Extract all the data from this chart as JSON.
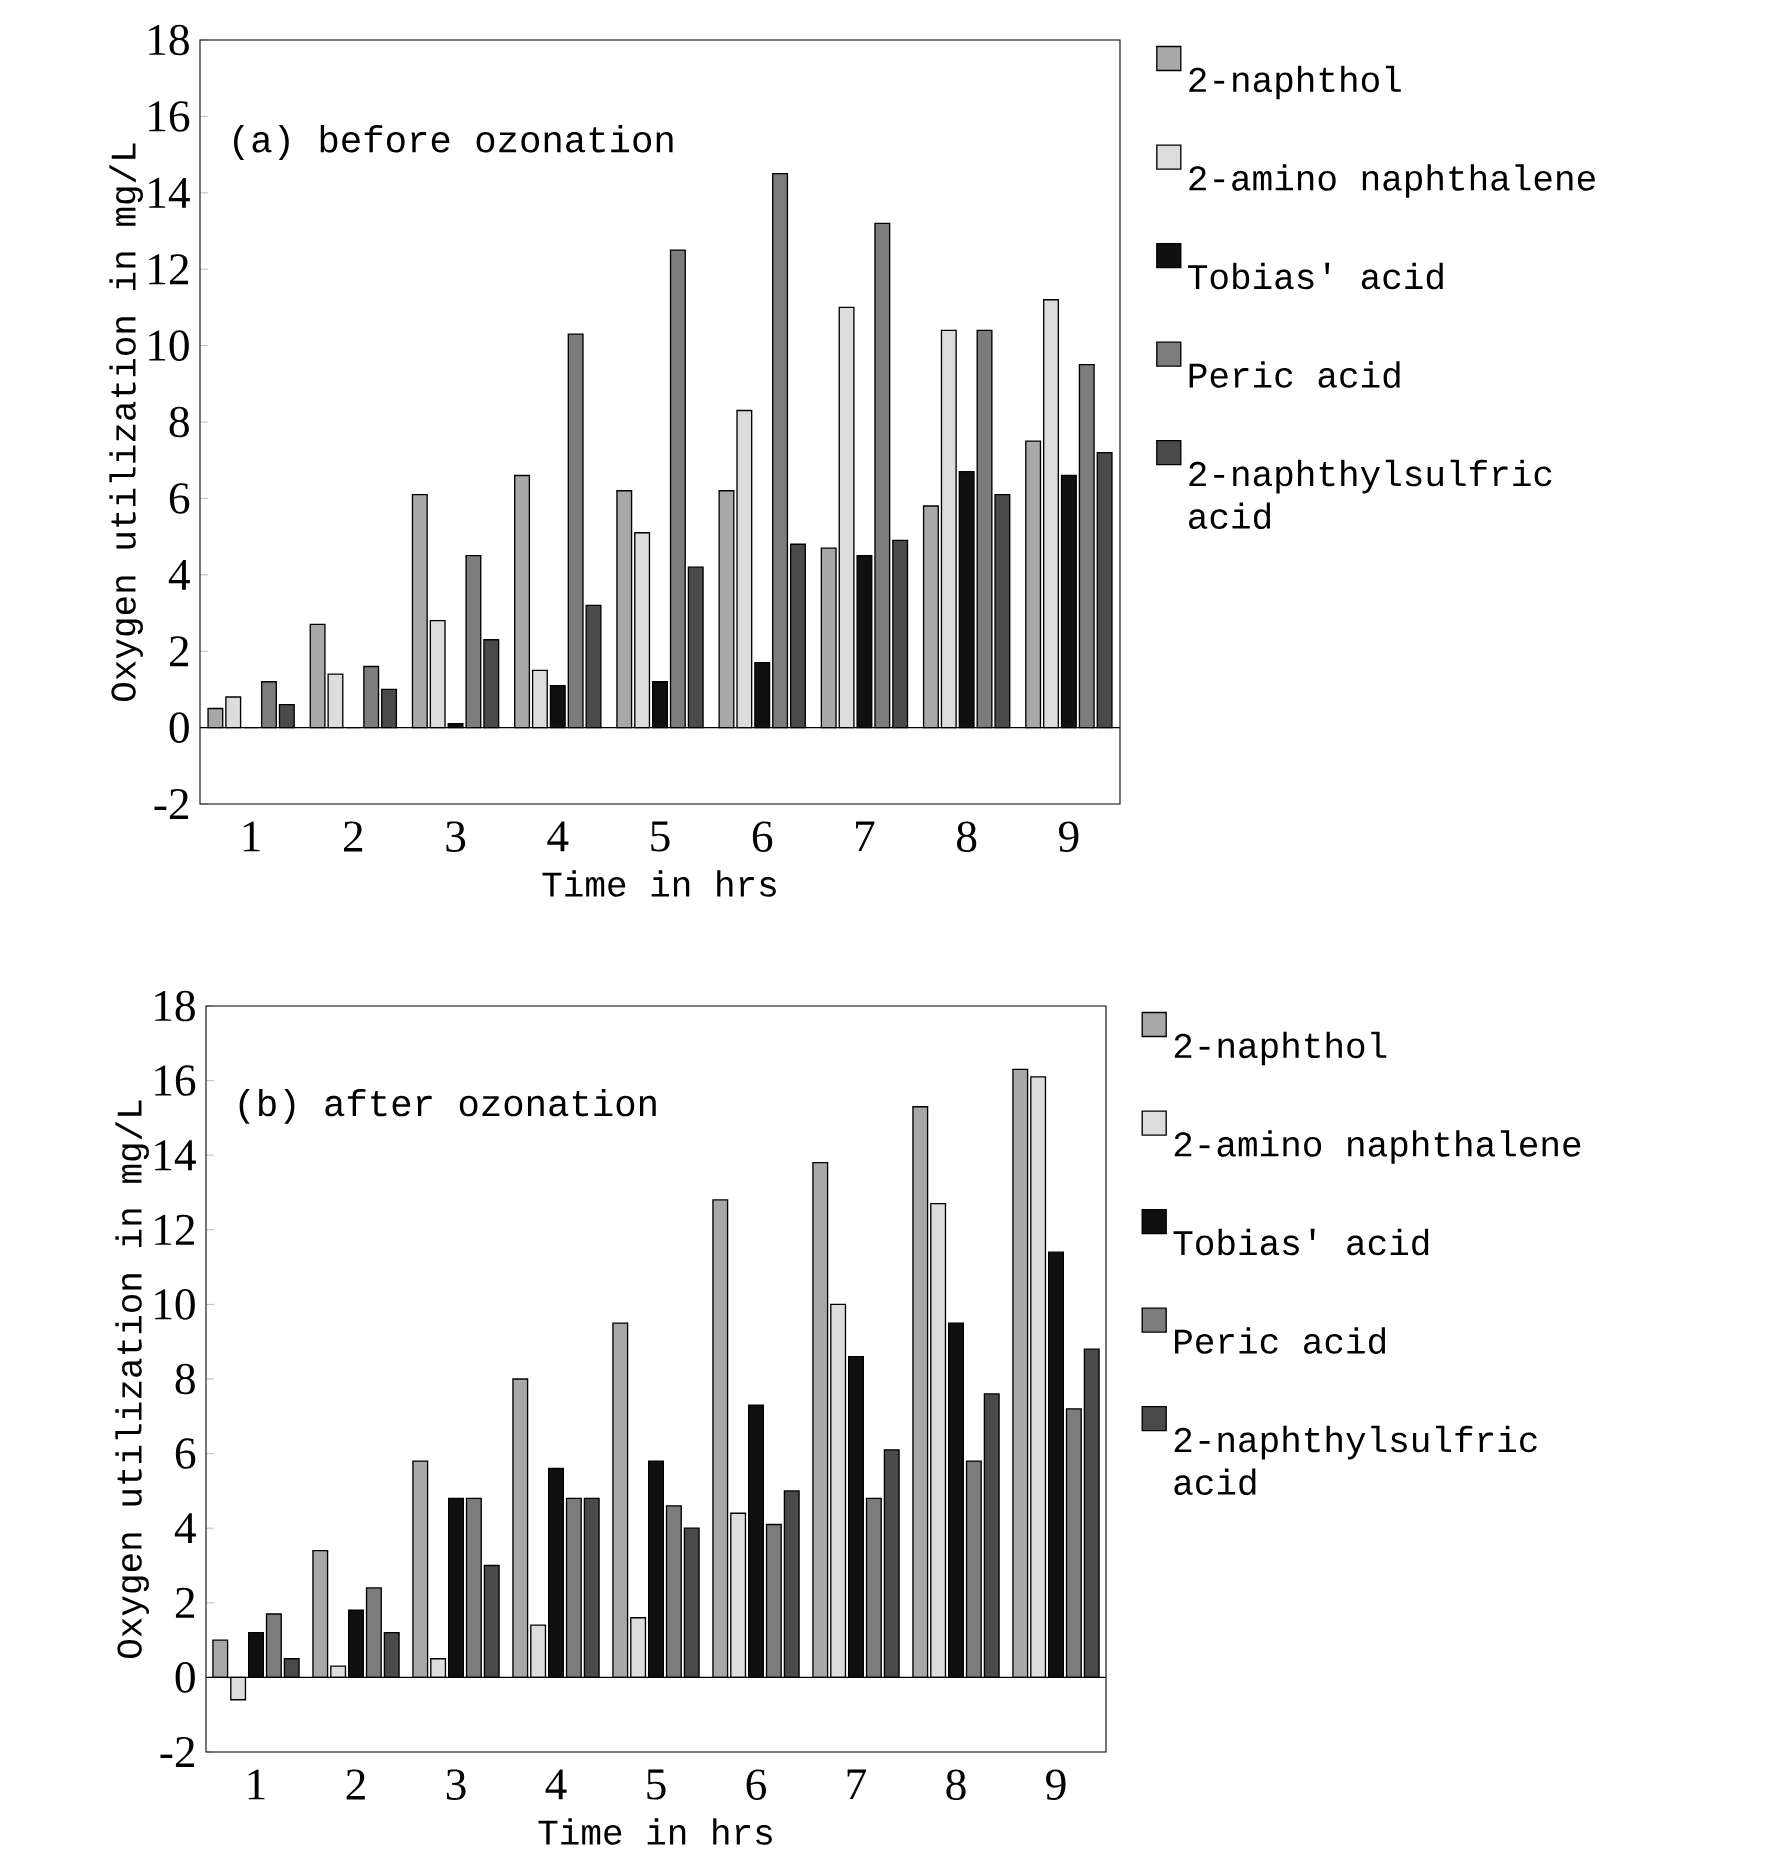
{
  "chart_data": [
    {
      "type": "bar",
      "title": "(a) before ozonation",
      "xlabel": "Time in hrs",
      "ylabel": "Oxygen utilization in mg/L",
      "categories": [
        "1",
        "2",
        "3",
        "4",
        "5",
        "6",
        "7",
        "8",
        "9"
      ],
      "series": [
        {
          "name": "2-naphthol",
          "color": "#a8a8a8",
          "values": [
            0.5,
            2.7,
            6.1,
            6.6,
            6.2,
            6.2,
            4.7,
            5.8,
            7.5
          ]
        },
        {
          "name": "2-amino naphthalene",
          "color": "#dcdcdc",
          "values": [
            0.8,
            1.4,
            2.8,
            1.5,
            5.1,
            8.3,
            11.0,
            10.4,
            11.2
          ]
        },
        {
          "name": "Tobias' acid",
          "color": "#101010",
          "values": [
            0,
            0,
            0.1,
            1.1,
            1.2,
            1.7,
            4.5,
            6.7,
            6.6
          ]
        },
        {
          "name": "Peric acid",
          "color": "#7c7c7c",
          "values": [
            1.2,
            1.6,
            4.5,
            10.3,
            12.5,
            14.5,
            13.2,
            10.4,
            9.5
          ]
        },
        {
          "name": "2-naphthylsulfric acid",
          "color": "#4a4a4a",
          "values": [
            0.6,
            1.0,
            2.3,
            3.2,
            4.2,
            4.8,
            4.9,
            6.1,
            7.2
          ]
        }
      ],
      "ylim": [
        -2,
        18
      ],
      "yticks": [
        -2,
        0,
        2,
        4,
        6,
        8,
        10,
        12,
        14,
        16,
        18
      ],
      "legend": "right"
    },
    {
      "type": "bar",
      "title": "(b) after ozonation",
      "xlabel": "Time in hrs",
      "ylabel": "Oxygen utilization in mg/L",
      "categories": [
        "1",
        "2",
        "3",
        "4",
        "5",
        "6",
        "7",
        "8",
        "9"
      ],
      "series": [
        {
          "name": "2-naphthol",
          "color": "#a8a8a8",
          "values": [
            1.0,
            3.4,
            5.8,
            8.0,
            9.5,
            12.8,
            13.8,
            15.3,
            16.3
          ]
        },
        {
          "name": "2-amino naphthalene",
          "color": "#dcdcdc",
          "values": [
            -0.6,
            0.3,
            0.5,
            1.4,
            1.6,
            4.4,
            10.0,
            12.7,
            16.1
          ]
        },
        {
          "name": "Tobias' acid",
          "color": "#101010",
          "values": [
            1.2,
            1.8,
            4.8,
            5.6,
            5.8,
            7.3,
            8.6,
            9.5,
            11.4
          ]
        },
        {
          "name": "Peric acid",
          "color": "#7c7c7c",
          "values": [
            1.7,
            2.4,
            4.8,
            4.8,
            4.6,
            4.1,
            4.8,
            5.8,
            7.2
          ]
        },
        {
          "name": "2-naphthylsulfric acid",
          "color": "#4a4a4a",
          "values": [
            0.5,
            1.2,
            3.0,
            4.8,
            4.0,
            5.0,
            6.1,
            7.6,
            8.8
          ]
        }
      ],
      "ylim": [
        -2,
        18
      ],
      "yticks": [
        -2,
        0,
        2,
        4,
        6,
        8,
        10,
        12,
        14,
        16,
        18
      ],
      "legend": "right"
    }
  ]
}
